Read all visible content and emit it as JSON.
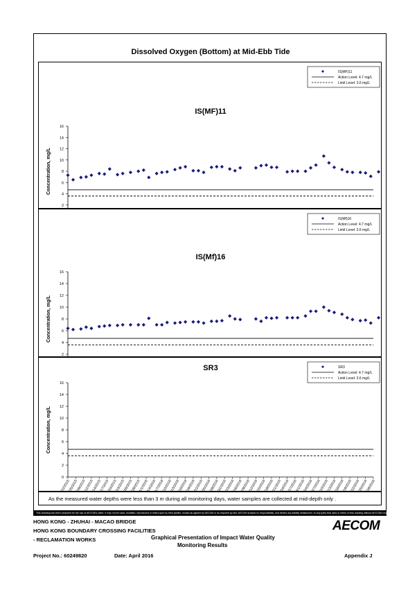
{
  "main_title": "Dissolved Oxygen (Bottom) at Mid-Ebb Tide",
  "date_ticks": [
    "12/2/2015",
    "12/5/2015",
    "12/8/2015",
    "12/11/2015",
    "12/14/2015",
    "12/17/2015",
    "12/20/2015",
    "12/23/2015",
    "12/26/2015",
    "12/29/2015",
    "1/1/2016",
    "1/4/2016",
    "1/7/2016",
    "1/10/2016",
    "1/13/2016",
    "1/16/2016",
    "1/19/2016",
    "1/22/2016",
    "1/25/2016",
    "1/28/2016",
    "1/31/2016",
    "2/3/2016",
    "2/6/2016",
    "2/9/2016",
    "2/12/2016",
    "2/15/2016",
    "2/18/2016",
    "2/21/2016",
    "2/24/2016",
    "2/27/2016",
    "3/1/2016",
    "3/4/2016",
    "3/7/2016",
    "3/10/2016",
    "3/13/2016",
    "3/16/2016",
    "3/19/2016",
    "3/22/2016",
    "3/25/2016",
    "3/28/2016"
  ],
  "chart_data": [
    {
      "type": "scatter",
      "title": "IS(MF)11",
      "xlabel": "Date",
      "ylabel": "Concentration, mg/L",
      "ylim": [
        0,
        16
      ],
      "yticks": [
        0,
        2,
        4,
        6,
        8,
        10,
        12,
        14,
        16
      ],
      "xlim": [
        "12/2/2015",
        "3/28/2016"
      ],
      "series": [
        {
          "name": "IS(MF)11",
          "marker": "diamond",
          "color": "#1a1a7a",
          "x": [
            "12/2/2015",
            "12/4/2015",
            "12/7/2015",
            "12/9/2015",
            "12/11/2015",
            "12/14/2015",
            "12/16/2015",
            "12/18/2015",
            "12/21/2015",
            "12/23/2015",
            "12/26/2015",
            "12/29/2015",
            "12/31/2015",
            "1/2/2016",
            "1/5/2016",
            "1/7/2016",
            "1/9/2016",
            "1/12/2016",
            "1/14/2016",
            "1/16/2016",
            "1/19/2016",
            "1/21/2016",
            "1/23/2016",
            "1/26/2016",
            "1/28/2016",
            "1/30/2016",
            "2/2/2016",
            "2/4/2016",
            "2/6/2016",
            "2/12/2016",
            "2/14/2016",
            "2/16/2016",
            "2/18/2016",
            "2/20/2016",
            "2/24/2016",
            "2/26/2016",
            "2/28/2016",
            "3/2/2016",
            "3/4/2016",
            "3/6/2016",
            "3/9/2016",
            "3/11/2016",
            "3/13/2016",
            "3/16/2016",
            "3/18/2016",
            "3/20/2016",
            "3/23/2016",
            "3/25/2016",
            "3/27/2016",
            "3/30/2016"
          ],
          "y": [
            7.3,
            6.5,
            6.9,
            7.0,
            7.3,
            7.6,
            7.5,
            8.4,
            7.4,
            7.6,
            7.8,
            8.0,
            8.2,
            6.9,
            7.6,
            7.8,
            7.9,
            8.3,
            8.6,
            8.8,
            8.1,
            8.1,
            7.8,
            8.7,
            8.8,
            8.8,
            8.4,
            8.1,
            8.6,
            8.6,
            9.0,
            9.1,
            8.7,
            8.7,
            7.9,
            8.0,
            8.0,
            8.0,
            8.6,
            9.1,
            10.7,
            9.5,
            8.7,
            8.3,
            7.9,
            7.8,
            7.8,
            7.7,
            7.1,
            7.9
          ]
        }
      ],
      "legend": {
        "placement": "top-right",
        "entries": [
          {
            "label": "IS(MF)11",
            "kind": "marker"
          },
          {
            "label": "Action Level: 4.7 mg/L",
            "kind": "solid"
          },
          {
            "label": "Limit Level: 3.6 mg/L",
            "kind": "dashed"
          }
        ]
      },
      "reference_lines": [
        {
          "label": "Action Level: 4.7 mg/L",
          "y": 4.7,
          "style": "solid"
        },
        {
          "label": "Limit Level: 3.6 mg/L",
          "y": 3.6,
          "style": "dashed"
        }
      ]
    },
    {
      "type": "scatter",
      "title": "IS(Mf)16",
      "xlabel": "Date",
      "ylabel": "Concentration, mg/L",
      "ylim": [
        0,
        16
      ],
      "yticks": [
        0,
        2,
        4,
        6,
        8,
        10,
        12,
        14,
        16
      ],
      "xlim": [
        "12/2/2015",
        "3/28/2016"
      ],
      "series": [
        {
          "name": "IS(Mf)16",
          "marker": "diamond",
          "color": "#1a1a7a",
          "x": [
            "12/2/2015",
            "12/4/2015",
            "12/7/2015",
            "12/9/2015",
            "12/11/2015",
            "12/14/2015",
            "12/16/2015",
            "12/18/2015",
            "12/21/2015",
            "12/23/2015",
            "12/26/2015",
            "12/29/2015",
            "12/31/2015",
            "1/2/2016",
            "1/5/2016",
            "1/7/2016",
            "1/9/2016",
            "1/12/2016",
            "1/14/2016",
            "1/16/2016",
            "1/19/2016",
            "1/21/2016",
            "1/23/2016",
            "1/26/2016",
            "1/28/2016",
            "1/30/2016",
            "2/2/2016",
            "2/4/2016",
            "2/6/2016",
            "2/12/2016",
            "2/14/2016",
            "2/16/2016",
            "2/18/2016",
            "2/20/2016",
            "2/24/2016",
            "2/26/2016",
            "2/28/2016",
            "3/2/2016",
            "3/4/2016",
            "3/6/2016",
            "3/9/2016",
            "3/11/2016",
            "3/13/2016",
            "3/16/2016",
            "3/18/2016",
            "3/20/2016",
            "3/23/2016",
            "3/25/2016",
            "3/27/2016",
            "3/30/2016"
          ],
          "y": [
            6.4,
            6.2,
            6.3,
            6.6,
            6.4,
            6.7,
            6.8,
            6.9,
            6.9,
            7.0,
            7.0,
            7.0,
            7.0,
            8.1,
            7.0,
            7.0,
            7.4,
            7.3,
            7.4,
            7.5,
            7.5,
            7.5,
            7.3,
            7.6,
            7.6,
            7.7,
            8.5,
            8.0,
            7.9,
            8.0,
            7.6,
            8.2,
            8.1,
            8.2,
            8.2,
            8.2,
            8.2,
            8.5,
            9.3,
            9.3,
            10.0,
            9.4,
            9.1,
            8.8,
            8.2,
            7.9,
            7.7,
            7.8,
            7.3,
            8.2
          ]
        }
      ],
      "legend": {
        "placement": "top-right",
        "entries": [
          {
            "label": "IS(Mf)16",
            "kind": "marker"
          },
          {
            "label": "Action Level: 4.7 mg/L",
            "kind": "solid"
          },
          {
            "label": "Limit Level: 3.6 mg/L",
            "kind": "dashed"
          }
        ]
      },
      "reference_lines": [
        {
          "label": "Action Level: 4.7 mg/L",
          "y": 4.7,
          "style": "solid"
        },
        {
          "label": "Limit Level: 3.6 mg/L",
          "y": 3.6,
          "style": "dashed"
        }
      ]
    },
    {
      "type": "scatter",
      "title": "SR3",
      "xlabel": "Date",
      "ylabel": "Concentration, mg/L",
      "ylim": [
        0,
        16
      ],
      "yticks": [
        0,
        2,
        4,
        6,
        8,
        10,
        12,
        14,
        16
      ],
      "xlim": [
        "12/2/2015",
        "3/28/2016"
      ],
      "series": [
        {
          "name": "SR3",
          "marker": "diamond",
          "color": "#1a1a7a",
          "x": [],
          "y": []
        }
      ],
      "legend": {
        "placement": "top-right",
        "entries": [
          {
            "label": "SR3",
            "kind": "marker"
          },
          {
            "label": "Action Level: 4.7 mg/L",
            "kind": "solid"
          },
          {
            "label": "Limit Level: 3.6 mg/L",
            "kind": "dashed"
          }
        ]
      },
      "reference_lines": [
        {
          "label": "Action Level: 4.7 mg/L",
          "y": 4.7,
          "style": "solid"
        },
        {
          "label": "Limit Level: 3.6 mg/L",
          "y": 3.6,
          "style": "dashed"
        }
      ]
    }
  ],
  "footnote": "As the measured water depths were less than 3 m during all monitoring days, water samples are collected  at mid-depth only .",
  "disclaimer": "This Drawing has been prepared for the use of AECOM's client. It may not be used, modified, reproduced or relied upon by third parties, except as agreed by AECOM or as required by law. AECOM accepts no responsibility, and denies any liability whatsoever, to any party that uses or relies on this drawing without AECOM's express written consent.",
  "footer": {
    "project_line1": "HONG KONG - ZHUHAI - MACAO BRIDGE",
    "project_line2": "HONG KONG BOUNDARY CROSSING FACILITIES",
    "project_line3": "- RECLAMATION WORKS",
    "presentation_line1": "Graphical Presentation of Impact Water Quality",
    "presentation_line2": "Monitoring Results",
    "project_no": "Project No.: 60249820",
    "date": "Date: April 2016",
    "appendix": "Appendix J",
    "logo": "AECOM"
  }
}
